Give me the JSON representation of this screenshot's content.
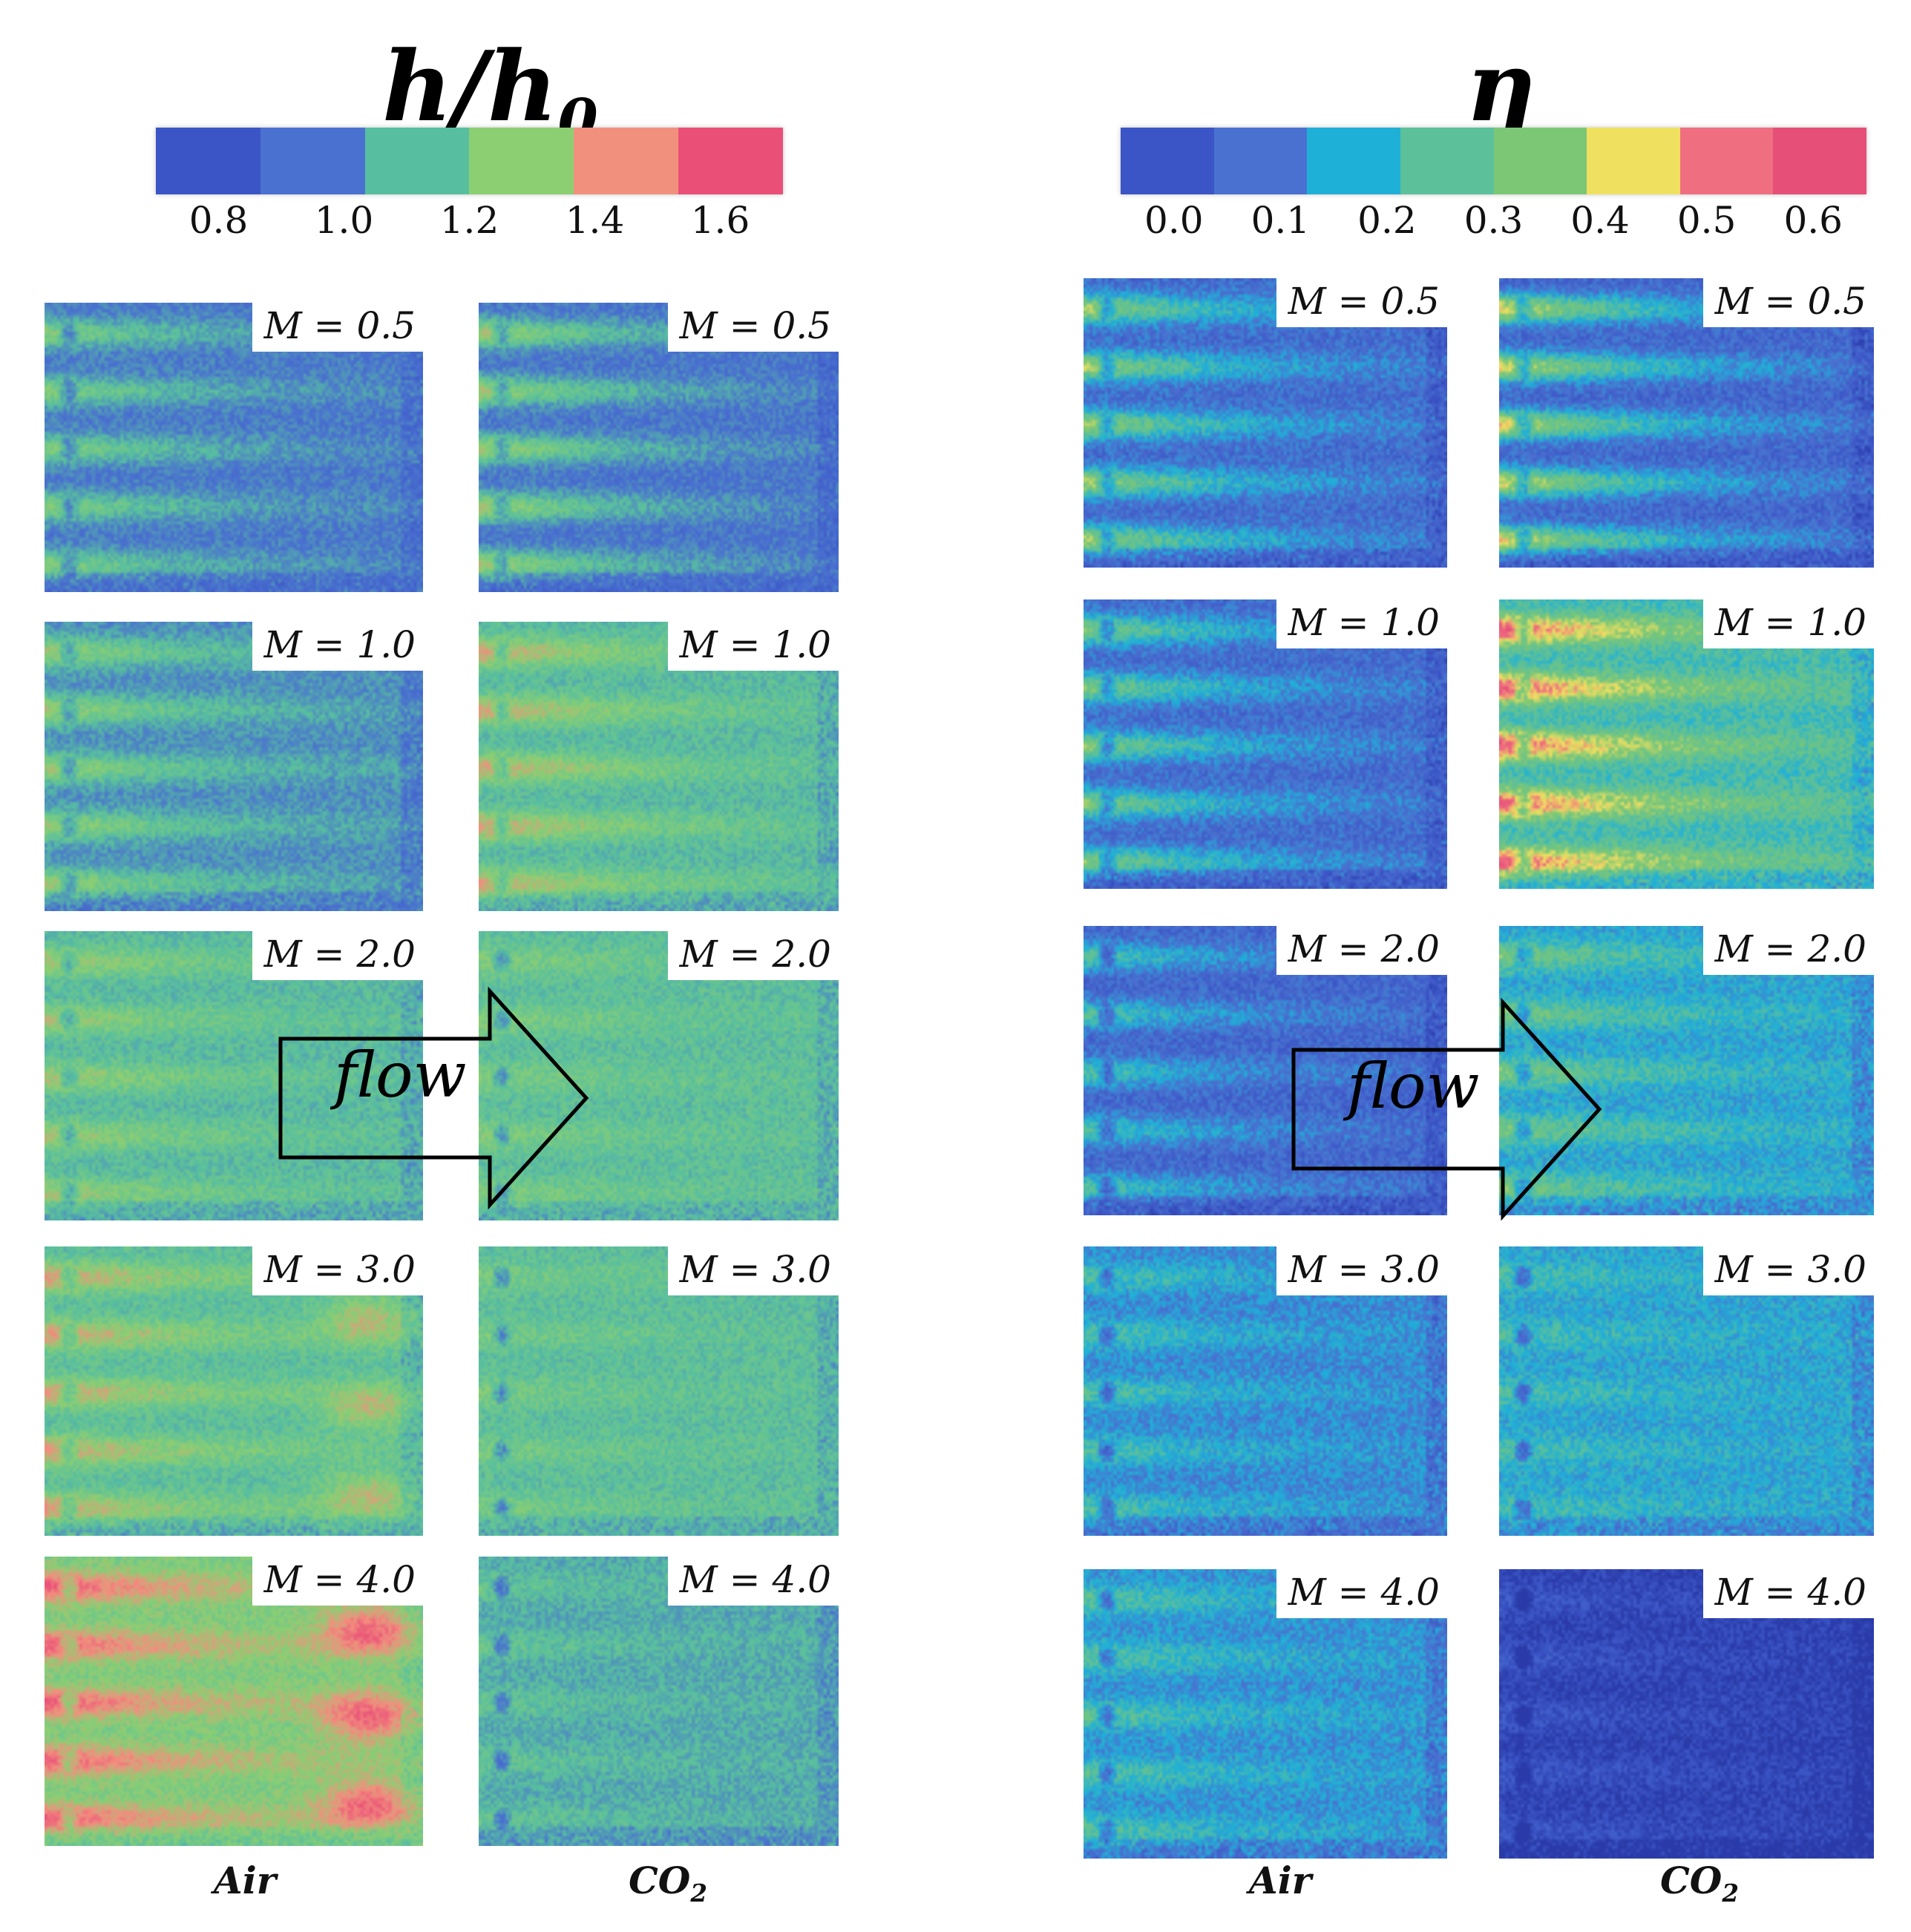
{
  "figure": {
    "left_title": "h/h",
    "left_title_sub": "0",
    "right_title": "η",
    "flow_label": "flow",
    "colors": {
      "left_colorbar": [
        "#3b55c6",
        "#4a71d0",
        "#57bfa0",
        "#8ccf72",
        "#f2907e",
        "#ea4f78"
      ],
      "right_colorbar": [
        "#3b55c6",
        "#4a71d0",
        "#1fb0d8",
        "#5cc09a",
        "#7cc776",
        "#f0e060",
        "#ef6f80",
        "#e64f78"
      ],
      "background": "#ffffff"
    }
  },
  "left_colorbar": {
    "ticks": [
      "0.8",
      "1.0",
      "1.2",
      "1.4",
      "1.6"
    ],
    "range": [
      0.7,
      1.7
    ]
  },
  "right_colorbar": {
    "ticks": [
      "0.0",
      "0.1",
      "0.2",
      "0.3",
      "0.4",
      "0.5",
      "0.6"
    ],
    "range": [
      -0.05,
      0.65
    ]
  },
  "columns": {
    "left_air": "Air",
    "left_co2": "CO",
    "left_co2_sub": "2",
    "right_air": "Air",
    "right_co2": "CO",
    "right_co2_sub": "2"
  },
  "panels": {
    "hh0_air": [
      "M = 0.5",
      "M = 1.0",
      "M = 2.0",
      "M = 3.0",
      "M = 4.0"
    ],
    "hh0_co2": [
      "M = 0.5",
      "M = 1.0",
      "M = 2.0",
      "M = 3.0",
      "M = 4.0"
    ],
    "eta_air": [
      "M = 0.5",
      "M = 1.0",
      "M = 2.0",
      "M = 3.0",
      "M = 4.0"
    ],
    "eta_co2": [
      "M = 0.5",
      "M = 1.0",
      "M = 2.0",
      "M = 3.0",
      "M = 4.0"
    ]
  }
}
